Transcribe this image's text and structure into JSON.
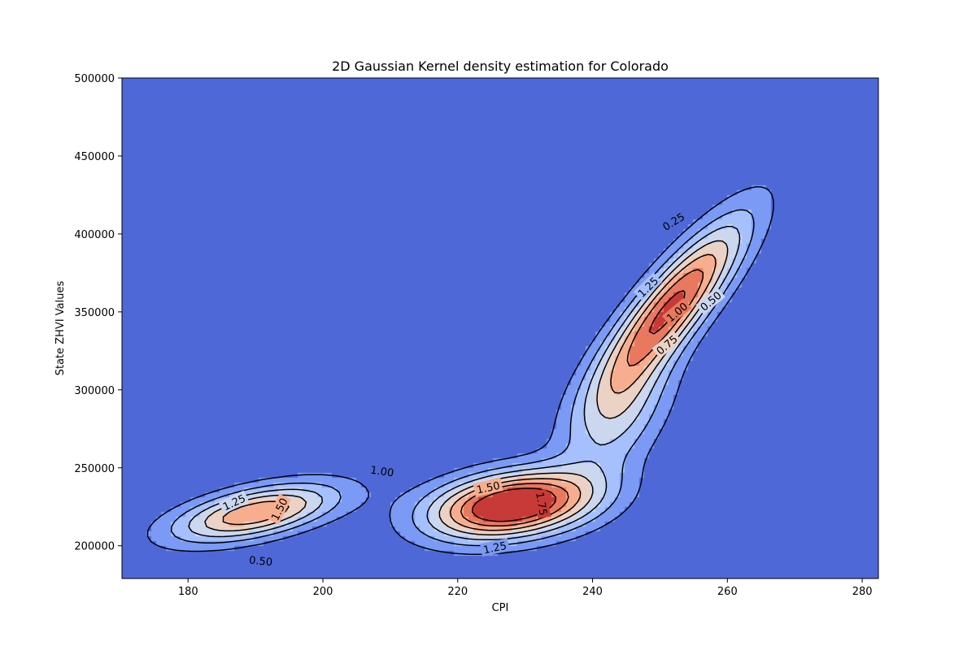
{
  "chart_data": {
    "type": "contour",
    "title": "2D Gaussian Kernel density estimation for Colorado",
    "xlabel": "CPI",
    "ylabel": "State ZHVI Values",
    "xlim": [
      170.2,
      282.4
    ],
    "ylim": [
      179000,
      500000
    ],
    "x_ticks": [
      180,
      200,
      220,
      240,
      260,
      280
    ],
    "y_ticks": [
      200000,
      250000,
      300000,
      350000,
      400000,
      450000,
      500000
    ],
    "y_tick_labels": [
      "200000",
      "250000",
      "300000",
      "350000",
      "400000",
      "450000",
      "500000"
    ],
    "grid": false,
    "levels": [
      0.25,
      0.5,
      0.75,
      1.0,
      1.25,
      1.5,
      1.75
    ],
    "density_unit_scale": "x 1e-5",
    "colormap": "coolwarm",
    "fill_colors": [
      "#4e68d8",
      "#7a9af6",
      "#a5c0fd",
      "#cbd7ef",
      "#ecd2c5",
      "#f7ae8f",
      "#e8785e",
      "#c83a37"
    ],
    "kernels": [
      {
        "cx": 190,
        "cy": 221000,
        "sx": 8.5,
        "sy": 13000,
        "rho": 0.55,
        "w": 1.0
      },
      {
        "cx": 228,
        "cy": 226000,
        "sx": 8.5,
        "sy": 15000,
        "rho": 0.3,
        "w": 1.5
      },
      {
        "cx": 252,
        "cy": 355000,
        "sx": 7.5,
        "sy": 38000,
        "rho": 0.85,
        "w": 1.2
      },
      {
        "cx": 244,
        "cy": 285000,
        "sx": 5.5,
        "sy": 30000,
        "rho": 0.5,
        "w": 0.55
      }
    ],
    "contour_labels": [
      {
        "text": "0.25",
        "x": 252,
        "y": 408000,
        "angle": -32
      },
      {
        "text": "0.50",
        "x": 257.5,
        "y": 357000,
        "angle": -40
      },
      {
        "text": "0.75",
        "x": 251,
        "y": 329000,
        "angle": -40
      },
      {
        "text": "1.00",
        "x": 252.5,
        "y": 350000,
        "angle": -40
      },
      {
        "text": "1.25",
        "x": 248.2,
        "y": 366000,
        "angle": -44
      },
      {
        "text": "1.00",
        "x": 208.8,
        "y": 248000,
        "angle": 8
      },
      {
        "text": "1.25",
        "x": 186.8,
        "y": 228000,
        "angle": -25
      },
      {
        "text": "1.50",
        "x": 193.5,
        "y": 223500,
        "angle": -64
      },
      {
        "text": "0.50",
        "x": 190.8,
        "y": 190500,
        "angle": 6
      },
      {
        "text": "1.50",
        "x": 224.5,
        "y": 237500,
        "angle": -12
      },
      {
        "text": "1.75",
        "x": 232.5,
        "y": 227000,
        "angle": 80
      },
      {
        "text": "1.25",
        "x": 225.5,
        "y": 199000,
        "angle": -12
      }
    ]
  }
}
